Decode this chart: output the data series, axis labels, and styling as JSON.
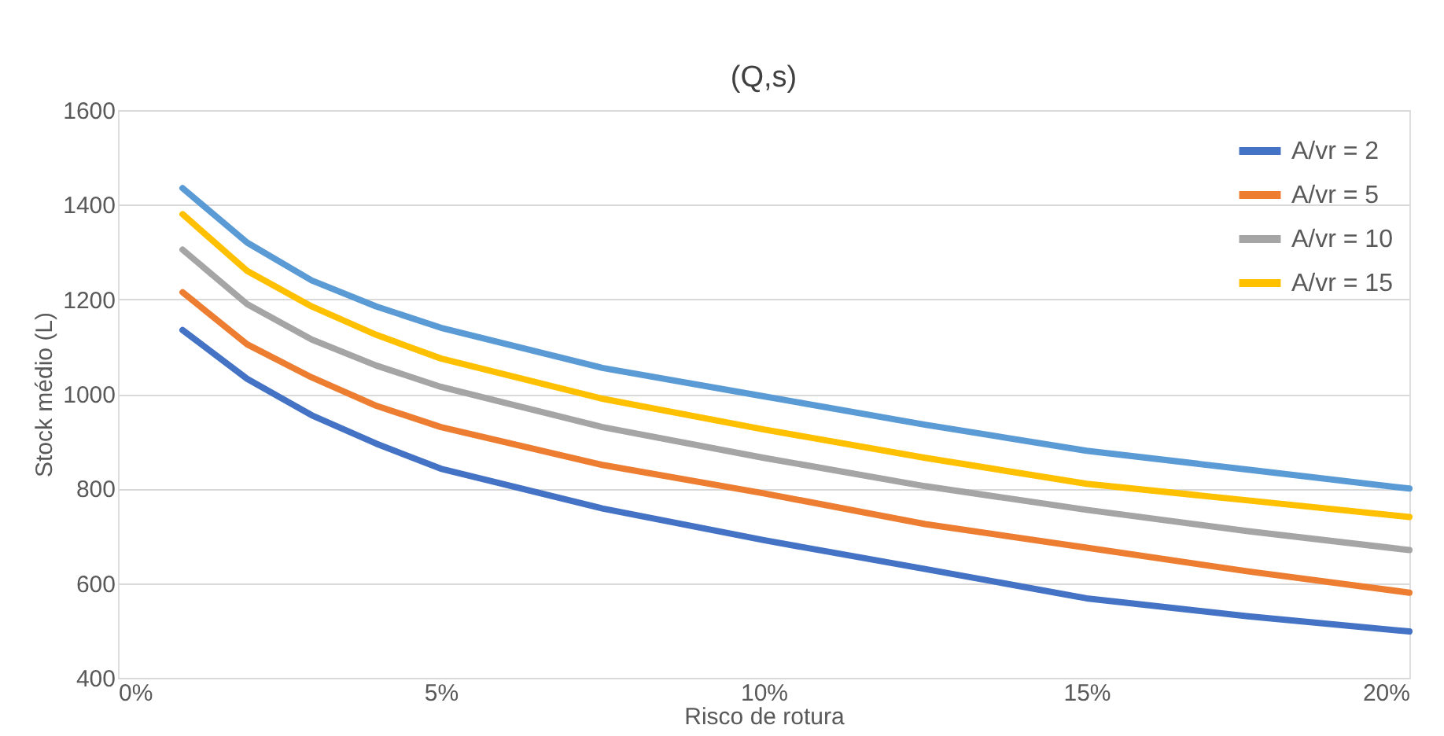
{
  "chart_data": {
    "type": "line",
    "title": "(Q,s)",
    "xlabel": "Risco de rotura",
    "ylabel": "Stock médio (L)",
    "x": [
      1,
      2,
      3,
      4,
      5,
      7.5,
      10,
      12.5,
      15,
      17.5,
      20
    ],
    "series": [
      {
        "name": "A/vr = 2",
        "color": "#4472c4",
        "values": [
          1135,
          1032,
          955,
          895,
          842,
          758,
          691,
          630,
          568,
          530,
          498
        ]
      },
      {
        "name": "A/vr = 5",
        "color": "#ed7d31",
        "values": [
          1215,
          1105,
          1035,
          975,
          930,
          850,
          790,
          725,
          675,
          625,
          580
        ]
      },
      {
        "name": "A/vr = 10",
        "color": "#a5a5a5",
        "values": [
          1305,
          1190,
          1115,
          1060,
          1015,
          930,
          865,
          805,
          755,
          710,
          670
        ]
      },
      {
        "name": "A/vr = 15",
        "color": "#ffc000",
        "values": [
          1380,
          1260,
          1185,
          1125,
          1075,
          990,
          925,
          865,
          810,
          775,
          740
        ]
      },
      {
        "color": "#5b9bd5",
        "values": [
          1435,
          1320,
          1240,
          1185,
          1140,
          1055,
          995,
          935,
          880,
          840,
          800
        ]
      }
    ],
    "xlim": [
      0,
      20
    ],
    "xticks": [
      {
        "value": 0,
        "label": "0%"
      },
      {
        "value": 5,
        "label": "5%"
      },
      {
        "value": 10,
        "label": "10%"
      },
      {
        "value": 15,
        "label": "15%"
      },
      {
        "value": 20,
        "label": "20%"
      }
    ],
    "ylim": [
      400,
      1600
    ],
    "yticks": [
      400,
      600,
      800,
      {
        "value": 1000,
        "label": "1000"
      },
      {
        "value": 1200,
        "label": "1200"
      },
      {
        "value": 1400,
        "label": "1400"
      },
      {
        "value": 1600,
        "label": "1600"
      }
    ],
    "grid": "y",
    "legend": "top right",
    "marker": "none",
    "line_style": "solid"
  }
}
